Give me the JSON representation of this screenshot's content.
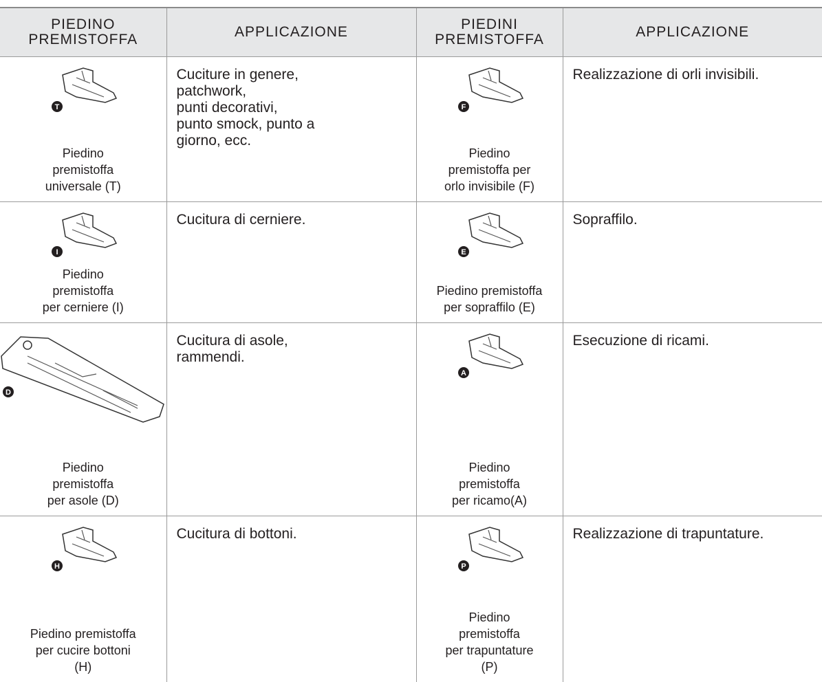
{
  "table": {
    "headers": [
      [
        "PIEDINO",
        "PREMISTOFFA"
      ],
      [
        "APPLICAZIONE"
      ],
      [
        "PIEDINI",
        "PREMISTOFFA"
      ],
      [
        "APPLICAZIONE"
      ]
    ],
    "rows": [
      {
        "left": {
          "badge": "T",
          "label": [
            "Piedino",
            "premistoffa",
            "universale (T)"
          ]
        },
        "left_app": [
          "Cuciture in genere,",
          "patchwork,",
          "punti decorativi,",
          "punto smock, punto a",
          "giorno, ecc."
        ],
        "right": {
          "badge": "F",
          "label": [
            "Piedino",
            "premistoffa per",
            "orlo invisibile (F)"
          ]
        },
        "right_app": [
          "Realizzazione di orli invisibili."
        ]
      },
      {
        "left": {
          "badge": "I",
          "label": [
            "Piedino",
            "premistoffa",
            "per cerniere (I)"
          ]
        },
        "left_app": [
          "Cucitura di cerniere."
        ],
        "right": {
          "badge": "E",
          "label": [
            "Piedino premistoffa",
            "per sopraffilo (E)"
          ]
        },
        "right_app": [
          "Sopraffilo."
        ]
      },
      {
        "left": {
          "badge": "D",
          "label": [
            "Piedino",
            "premistoffa",
            "per asole (D)"
          ]
        },
        "left_app": [
          "Cucitura di asole,",
          "rammendi."
        ],
        "right": {
          "badge": "A",
          "label": [
            "Piedino",
            "premistoffa",
            "per ricamo(A)"
          ]
        },
        "right_app": [
          "Esecuzione di ricami."
        ]
      },
      {
        "left": {
          "badge": "H",
          "label": [
            "Piedino premistoffa",
            "per cucire bottoni",
            "(H)"
          ]
        },
        "left_app": [
          "Cucitura di bottoni."
        ],
        "right": {
          "badge": "P",
          "label": [
            "Piedino",
            "premistoffa",
            "per trapuntature",
            "(P)"
          ]
        },
        "right_app": [
          "Realizzazione di trapuntature."
        ]
      }
    ]
  }
}
